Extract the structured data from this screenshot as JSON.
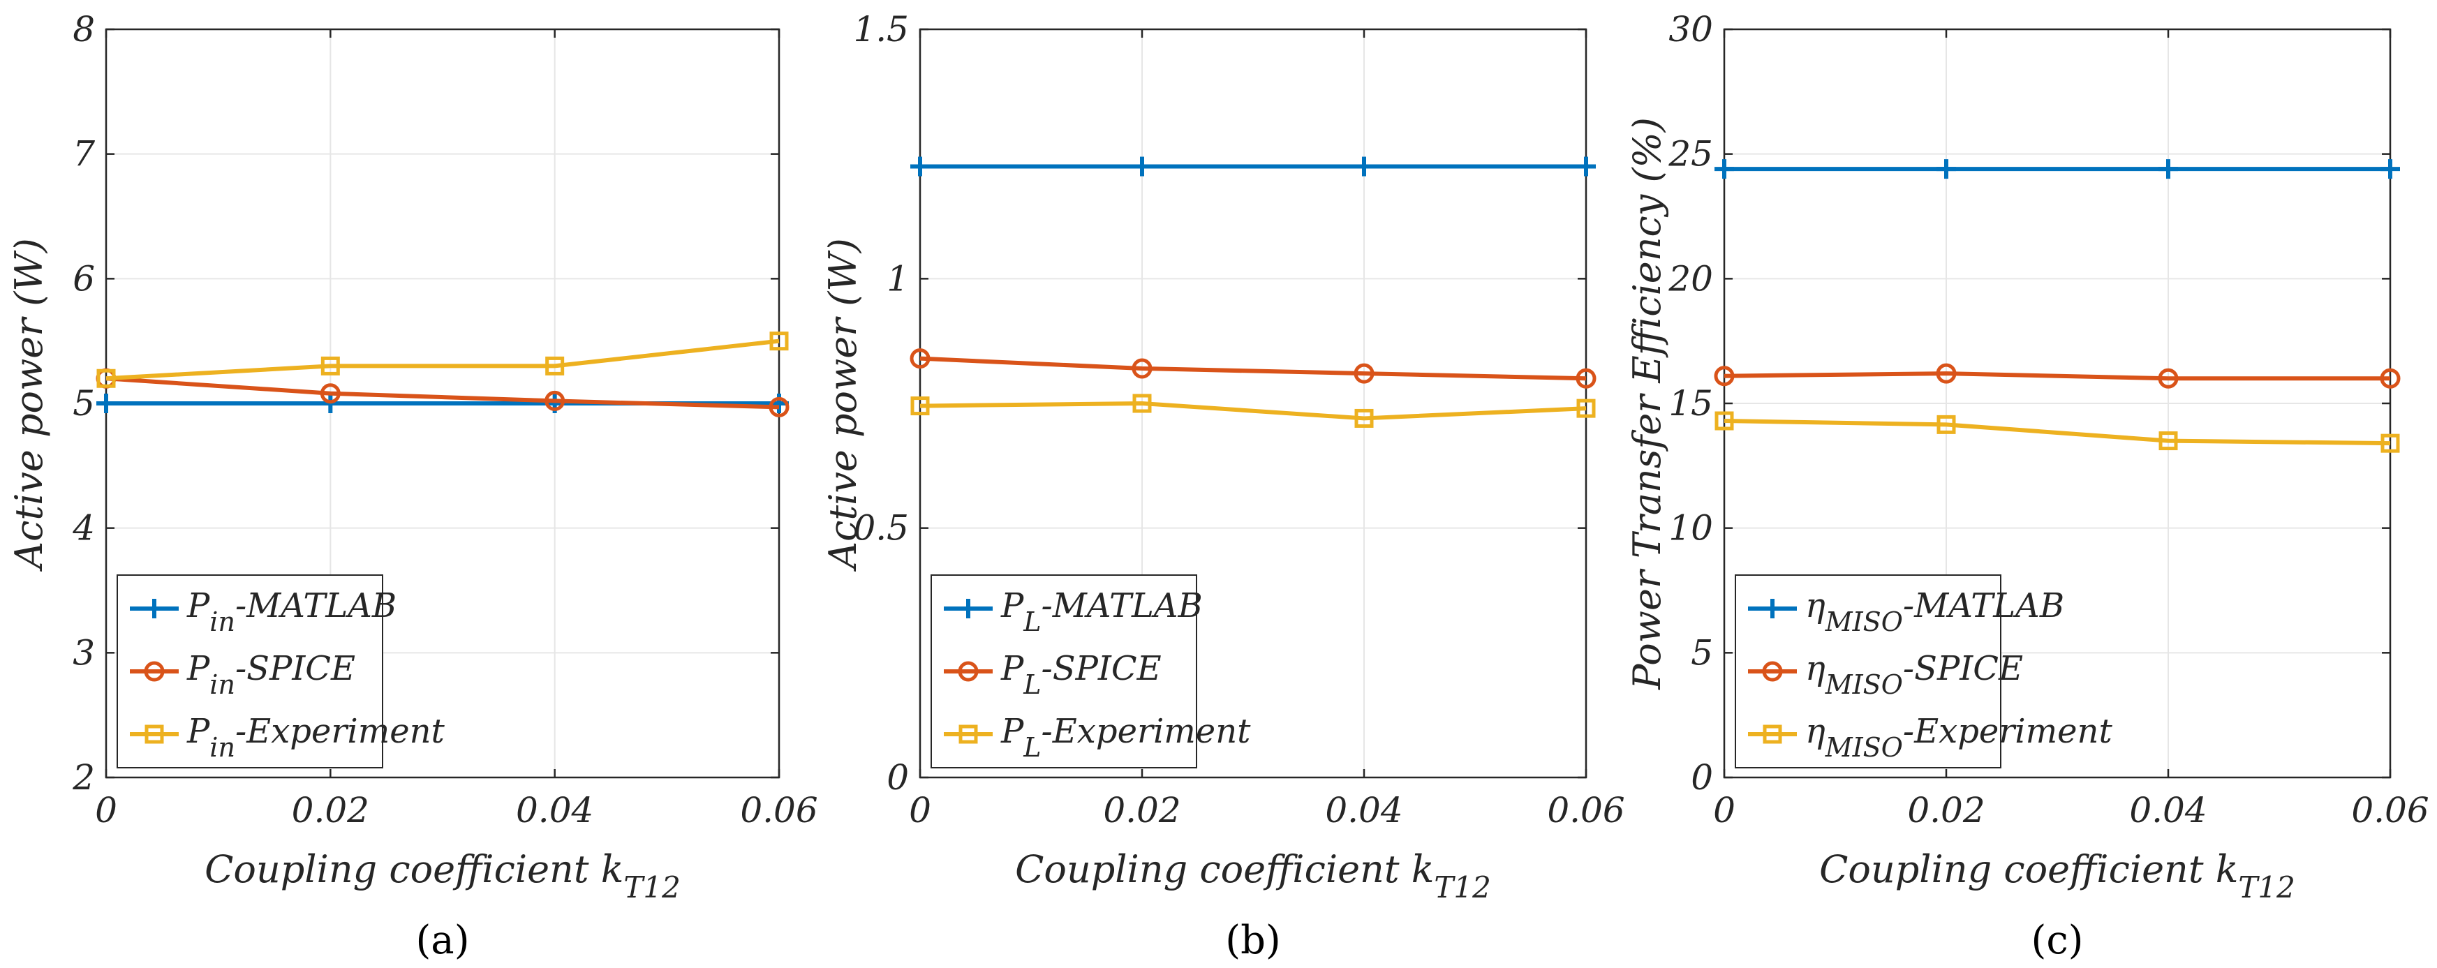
{
  "colors": {
    "matlab": "#0072BD",
    "spice": "#D95319",
    "experiment": "#EDB120",
    "grid": "#E6E6E6",
    "axis": "#262626"
  },
  "chart_data": [
    {
      "type": "line",
      "panel_label": "(a)",
      "xlabel_main": "Coupling coefficient k",
      "xlabel_sub": "T12",
      "ylabel": "Active power (W)",
      "x": [
        0,
        0.02,
        0.04,
        0.06
      ],
      "x_tick_labels": [
        "0",
        "0.02",
        "0.04",
        "0.06"
      ],
      "xlim": [
        0,
        0.06
      ],
      "ylim": [
        2,
        8
      ],
      "y_ticks": [
        2,
        3,
        4,
        5,
        6,
        7,
        8
      ],
      "y_tick_labels": [
        "2",
        "3",
        "4",
        "5",
        "6",
        "7",
        "8"
      ],
      "grid": true,
      "legend_position": "bottom-left",
      "series": [
        {
          "key": "matlab",
          "name_main": "P",
          "name_sub": "in",
          "name_suffix": "-MATLAB",
          "marker": "plus",
          "values": [
            5.0,
            5.0,
            5.0,
            5.0
          ]
        },
        {
          "key": "spice",
          "name_main": "P",
          "name_sub": "in",
          "name_suffix": "-SPICE",
          "marker": "circle",
          "values": [
            5.2,
            5.08,
            5.02,
            4.97
          ]
        },
        {
          "key": "experiment",
          "name_main": "P",
          "name_sub": "in",
          "name_suffix": "-Experiment",
          "marker": "square",
          "values": [
            5.2,
            5.3,
            5.3,
            5.5
          ]
        }
      ]
    },
    {
      "type": "line",
      "panel_label": "(b)",
      "xlabel_main": "Coupling coefficient k",
      "xlabel_sub": "T12",
      "ylabel": "Active power (W)",
      "x": [
        0,
        0.02,
        0.04,
        0.06
      ],
      "x_tick_labels": [
        "0",
        "0.02",
        "0.04",
        "0.06"
      ],
      "xlim": [
        0,
        0.06
      ],
      "ylim": [
        0,
        1.5
      ],
      "y_ticks": [
        0,
        0.5,
        1,
        1.5
      ],
      "y_tick_labels": [
        "0",
        "0.5",
        "1",
        "1.5"
      ],
      "grid": true,
      "legend_position": "bottom-left",
      "series": [
        {
          "key": "matlab",
          "name_main": "P",
          "name_sub": "L",
          "name_suffix": "-MATLAB",
          "marker": "plus",
          "values": [
            1.225,
            1.225,
            1.225,
            1.225
          ]
        },
        {
          "key": "spice",
          "name_main": "P",
          "name_sub": "L",
          "name_suffix": "-SPICE",
          "marker": "circle",
          "values": [
            0.84,
            0.82,
            0.81,
            0.8
          ]
        },
        {
          "key": "experiment",
          "name_main": "P",
          "name_sub": "L",
          "name_suffix": "-Experiment",
          "marker": "square",
          "values": [
            0.745,
            0.75,
            0.72,
            0.74
          ]
        }
      ]
    },
    {
      "type": "line",
      "panel_label": "(c)",
      "xlabel_main": "Coupling coefficient k",
      "xlabel_sub": "T12",
      "ylabel": "Power Transfer Efficiency (%)",
      "x": [
        0,
        0.02,
        0.04,
        0.06
      ],
      "x_tick_labels": [
        "0",
        "0.02",
        "0.04",
        "0.06"
      ],
      "xlim": [
        0,
        0.06
      ],
      "ylim": [
        0,
        30
      ],
      "y_ticks": [
        0,
        5,
        10,
        15,
        20,
        25,
        30
      ],
      "y_tick_labels": [
        "0",
        "5",
        "10",
        "15",
        "20",
        "25",
        "30"
      ],
      "grid": true,
      "legend_position": "bottom-left",
      "series": [
        {
          "key": "matlab",
          "name_main": "η",
          "name_sub": "MISO",
          "name_suffix": "-MATLAB",
          "marker": "plus",
          "values": [
            24.4,
            24.4,
            24.4,
            24.4
          ]
        },
        {
          "key": "spice",
          "name_main": "η",
          "name_sub": "MISO",
          "name_suffix": "-SPICE",
          "marker": "circle",
          "values": [
            16.1,
            16.2,
            16.0,
            16.0
          ]
        },
        {
          "key": "experiment",
          "name_main": "η",
          "name_sub": "MISO",
          "name_suffix": "-Experiment",
          "marker": "square",
          "values": [
            14.3,
            14.15,
            13.5,
            13.4
          ]
        }
      ]
    }
  ]
}
